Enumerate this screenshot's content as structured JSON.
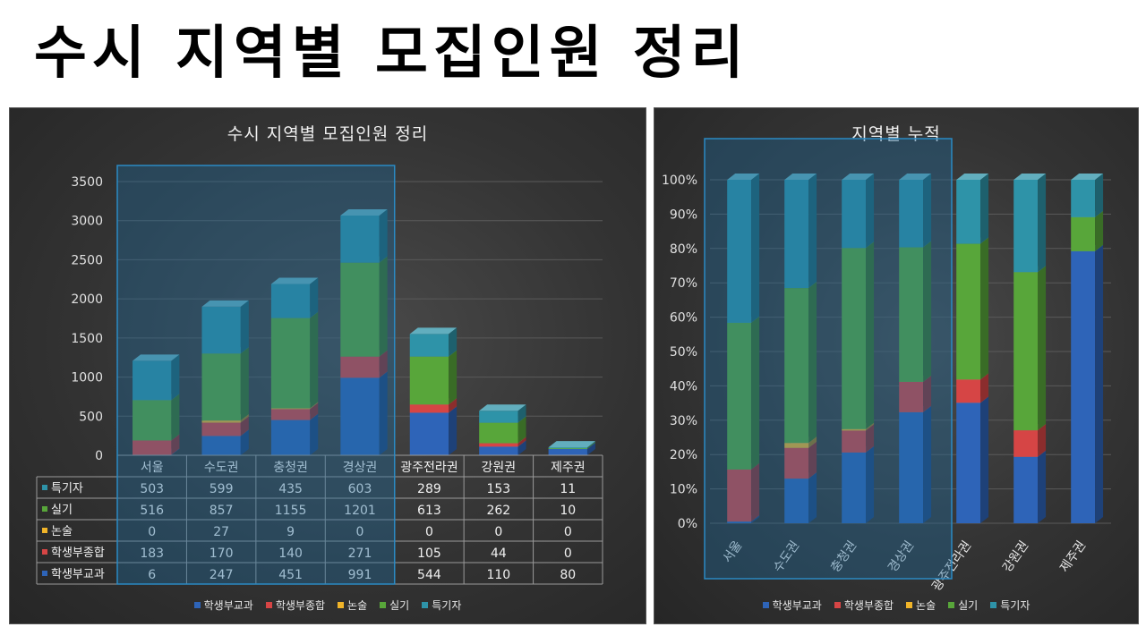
{
  "page_title": "수시 지역별 모집인원 정리",
  "colors": {
    "학생부교과": "#2e64b8",
    "학생부종합": "#d64545",
    "논술": "#f0b429",
    "실기": "#58a63a",
    "특기자": "#2e93a8",
    "highlight": "#1e6a9a"
  },
  "chart_data": [
    {
      "type": "bar",
      "stacked": true,
      "title": "수시 지역별 모집인원 정리",
      "categories": [
        "서울",
        "수도권",
        "충청권",
        "경상권",
        "광주전라권",
        "강원권",
        "제주권"
      ],
      "series": [
        {
          "name": "학생부교과",
          "values": [
            6,
            247,
            451,
            991,
            544,
            110,
            80
          ]
        },
        {
          "name": "학생부종합",
          "values": [
            183,
            170,
            140,
            271,
            105,
            44,
            0
          ]
        },
        {
          "name": "논술",
          "values": [
            0,
            27,
            9,
            0,
            0,
            0,
            0
          ]
        },
        {
          "name": "실기",
          "values": [
            516,
            857,
            1155,
            1201,
            613,
            262,
            10
          ]
        },
        {
          "name": "특기자",
          "values": [
            503,
            599,
            435,
            603,
            289,
            153,
            11
          ]
        }
      ],
      "yticks": [
        "0",
        "500",
        "1000",
        "1500",
        "2000",
        "2500",
        "3000",
        "3500"
      ],
      "ylim": [
        0,
        3500
      ],
      "data_table": true,
      "legend": "bottom",
      "highlight_categories": [
        "서울",
        "수도권",
        "충청권",
        "경상권"
      ]
    },
    {
      "type": "bar",
      "stacked": true,
      "percent": true,
      "title": "지역별 누적",
      "categories": [
        "서울",
        "수도권",
        "충청권",
        "경상권",
        "광주전라권",
        "강원권",
        "제주권"
      ],
      "yticks": [
        "0%",
        "10%",
        "20%",
        "30%",
        "40%",
        "50%",
        "60%",
        "70%",
        "80%",
        "90%",
        "100%"
      ],
      "ylim": [
        0,
        100
      ],
      "legend": "bottom",
      "highlight_categories": [
        "서울",
        "수도권",
        "충청권",
        "경상권"
      ]
    }
  ]
}
